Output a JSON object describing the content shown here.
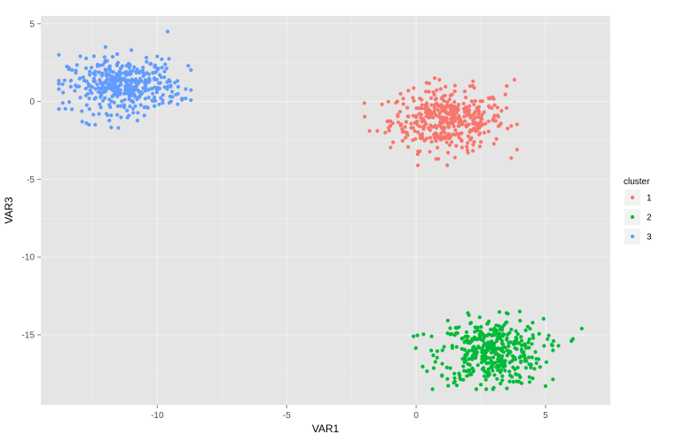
{
  "chart_data": {
    "type": "scatter",
    "xlabel": "VAR1",
    "ylabel": "VAR3",
    "xlim": [
      -14.5,
      7.5
    ],
    "ylim": [
      -19.5,
      5.5
    ],
    "x_ticks": [
      -10,
      -5,
      0,
      5
    ],
    "y_ticks": [
      5,
      0,
      -5,
      -10,
      -15
    ],
    "x_tick_labels": [
      "-10",
      "-5",
      "0",
      "5"
    ],
    "y_tick_labels": [
      "5",
      "0",
      "-5",
      "-10",
      "-15"
    ],
    "grid": true,
    "background": "#e5e5e5",
    "legend": {
      "title": "cluster",
      "placement": "right",
      "entries": [
        "1",
        "2",
        "3"
      ]
    },
    "series": [
      {
        "name": "1",
        "color": "#f8766d",
        "center": [
          1.2,
          -1.2
        ],
        "spread": [
          1.1,
          0.95
        ],
        "count": 400,
        "x_range": [
          -2.0,
          3.9
        ],
        "y_range": [
          -4.1,
          1.5
        ],
        "values": [
          [
            -1.8,
            -1.9
          ],
          [
            -1.5,
            -1.9
          ],
          [
            -0.9,
            -1.4
          ],
          [
            -0.6,
            0.5
          ],
          [
            -0.3,
            0.7
          ],
          [
            0.0,
            -1.0
          ],
          [
            0.4,
            1.2
          ],
          [
            0.9,
            1.4
          ],
          [
            1.2,
            -4.1
          ],
          [
            1.5,
            -3.6
          ],
          [
            2.0,
            -3.3
          ],
          [
            2.5,
            -2.6
          ],
          [
            3.0,
            -1.2
          ],
          [
            3.5,
            1.0
          ],
          [
            3.8,
            1.4
          ],
          [
            3.3,
            -0.6
          ],
          [
            2.2,
            1.3
          ],
          [
            0.6,
            -2.6
          ]
        ]
      },
      {
        "name": "2",
        "color": "#00ba38",
        "center": [
          2.9,
          -16.1
        ],
        "spread": [
          1.0,
          1.05
        ],
        "count": 400,
        "x_range": [
          -0.2,
          6.5
        ],
        "y_range": [
          -18.5,
          -13.5
        ],
        "values": [
          [
            -0.1,
            -15.1
          ],
          [
            0.6,
            -15.1
          ],
          [
            1.0,
            -17.6
          ],
          [
            1.5,
            -18.0
          ],
          [
            2.0,
            -13.6
          ],
          [
            2.5,
            -18.2
          ],
          [
            3.0,
            -18.4
          ],
          [
            3.5,
            -14.2
          ],
          [
            4.0,
            -13.5
          ],
          [
            4.5,
            -17.8
          ],
          [
            5.0,
            -18.3
          ],
          [
            5.5,
            -15.7
          ],
          [
            6.0,
            -15.4
          ],
          [
            6.4,
            -14.6
          ],
          [
            3.2,
            -16.3
          ],
          [
            2.3,
            -15.9
          ]
        ]
      },
      {
        "name": "3",
        "color": "#619cff",
        "center": [
          -11.3,
          1.0
        ],
        "spread": [
          1.05,
          0.85
        ],
        "count": 400,
        "x_range": [
          -13.8,
          -8.7
        ],
        "y_range": [
          -1.8,
          4.5
        ],
        "values": [
          [
            -13.8,
            3.0
          ],
          [
            -13.3,
            -0.5
          ],
          [
            -12.9,
            -1.3
          ],
          [
            -12.4,
            -1.5
          ],
          [
            -12.0,
            3.5
          ],
          [
            -11.5,
            -1.7
          ],
          [
            -11.0,
            3.3
          ],
          [
            -10.5,
            -0.9
          ],
          [
            -10.0,
            2.9
          ],
          [
            -9.6,
            4.5
          ],
          [
            -9.2,
            0.5
          ],
          [
            -8.8,
            2.3
          ],
          [
            -8.9,
            0.8
          ],
          [
            -11.4,
            1.1
          ]
        ]
      }
    ]
  }
}
